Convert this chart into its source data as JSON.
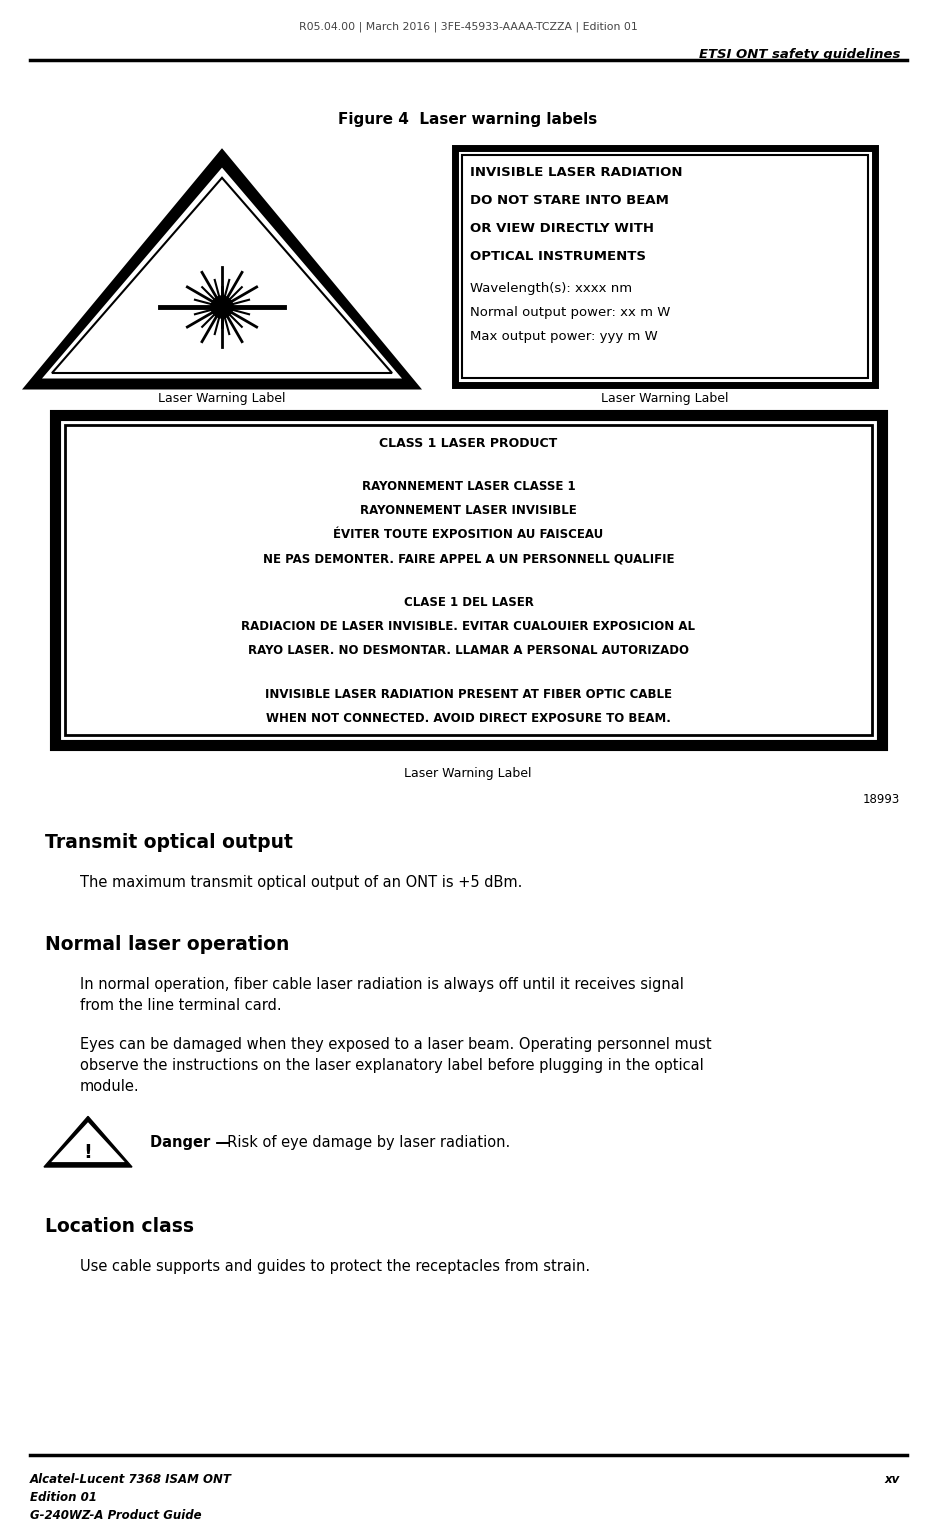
{
  "header_center": "R05.04.00 | March 2016 | 3FE-45933-AAAA-TCZZA | Edition 01",
  "header_right": "ETSI ONT safety guidelines",
  "footer_left_line1": "Alcatel-Lucent 7368 ISAM ONT",
  "footer_left_line2": "Edition 01",
  "footer_left_line3": "G-240WZ-A Product Guide",
  "footer_right": "xv",
  "figure_title": "Figure 4  Laser warning labels",
  "label1_caption": "Laser Warning Label",
  "label2_caption": "Laser Warning Label",
  "label3_caption": "Laser Warning Label",
  "label2_bold": [
    "INVISIBLE LASER RADIATION",
    "DO NOT STARE INTO BEAM",
    "OR VIEW DIRECTLY WITH",
    "OPTICAL INSTRUMENTS"
  ],
  "label2_normal": [
    "Wavelength(s): xxxx nm",
    "Normal output power: xx m W",
    "Max output power: yyy m W"
  ],
  "label3_title": "CLASS 1 LASER PRODUCT",
  "label3_french": [
    "RAYONNEMENT LASER CLASSE 1",
    "RAYONNEMENT LASER INVISIBLE",
    "ÉVITER TOUTE EXPOSITION AU FAISCEAU",
    "NE PAS DEMONTER. FAIRE APPEL A UN PERSONNELL QUALIFIE"
  ],
  "label3_spanish": [
    "CLASE 1 DEL LASER",
    "RADIACION DE LASER INVISIBLE. EVITAR CUALOUIER EXPOSICION AL",
    "RAYO LASER. NO DESMONTAR. LLAMAR A PERSONAL AUTORIZADO"
  ],
  "label3_english": [
    "INVISIBLE LASER RADIATION PRESENT AT FIBER OPTIC CABLE",
    "WHEN NOT CONNECTED. AVOID DIRECT EXPOSURE TO BEAM."
  ],
  "figure_number": "18993",
  "sec1_title": "Transmit optical output",
  "sec1_body": "The maximum transmit optical output of an ONT is +5 dBm.",
  "sec2_title": "Normal laser operation",
  "sec2_para1_line1": "In normal operation, fiber cable laser radiation is always off until it receives signal",
  "sec2_para1_line2": "from the line terminal card.",
  "sec2_para2_line1": "Eyes can be damaged when they exposed to a laser beam. Operating personnel must",
  "sec2_para2_line2": "observe the instructions on the laser explanatory label before plugging in the optical",
  "sec2_para2_line3": "module.",
  "danger_bold": "Danger —",
  "danger_normal": "  Risk of eye damage by laser radiation.",
  "sec3_title": "Location class",
  "sec3_body": "Use cable supports and guides to protect the receptacles from strain.",
  "bg": "#ffffff"
}
